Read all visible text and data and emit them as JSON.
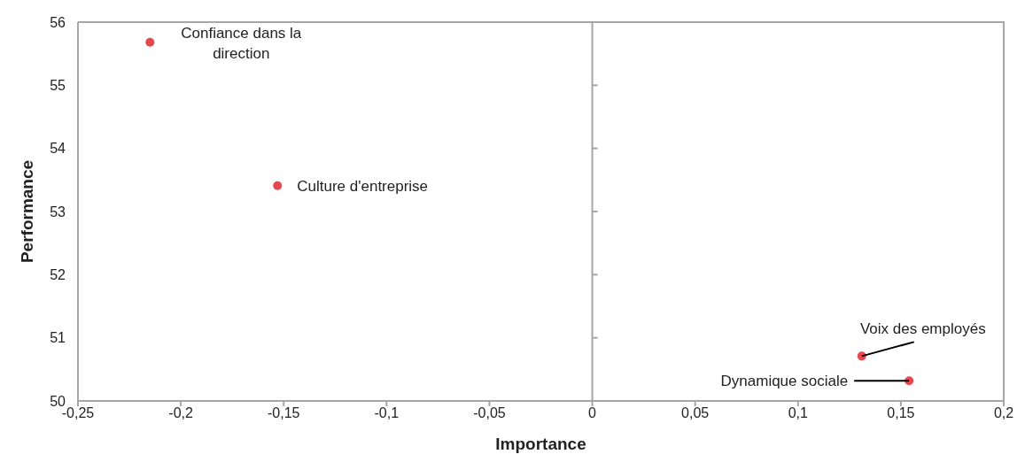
{
  "chart_data": {
    "type": "scatter",
    "xlabel": "Importance",
    "ylabel": "Performance",
    "x": [
      -0.215,
      -0.153,
      0.131,
      0.154
    ],
    "values": [
      55.68,
      53.41,
      50.71,
      50.32
    ],
    "color": "#e5484d",
    "xlim": [
      -0.25,
      0.2
    ],
    "ylim": [
      50,
      56
    ],
    "xticks": [
      {
        "value": -0.25,
        "label": "-0,25"
      },
      {
        "value": -0.2,
        "label": "-0,2"
      },
      {
        "value": -0.15,
        "label": "-0,15"
      },
      {
        "value": -0.1,
        "label": "-0,1"
      },
      {
        "value": -0.05,
        "label": "-0,05"
      },
      0,
      {
        "value": 0.05,
        "label": "0,05"
      },
      {
        "value": 0.1,
        "label": "0,1"
      },
      {
        "value": 0.15,
        "label": "0,15"
      },
      {
        "value": 0.2,
        "label": "0,2"
      }
    ],
    "yticks": [
      50,
      51,
      52,
      53,
      54,
      55,
      56
    ],
    "grid": false,
    "legend": false,
    "marker": "circle",
    "ref_lines": [
      {
        "axis": "x",
        "value": 0,
        "color": "#a6a6a6"
      }
    ],
    "annotations": [
      {
        "text": "Confiance dans la direction",
        "x": -0.215,
        "y": 55.68
      },
      {
        "text": "Culture d'entreprise",
        "x": -0.153,
        "y": 53.41
      },
      {
        "text": "Voix des employés",
        "x": 0.131,
        "y": 50.71
      },
      {
        "text": "Dynamique sociale",
        "x": 0.154,
        "y": 50.32
      }
    ]
  }
}
